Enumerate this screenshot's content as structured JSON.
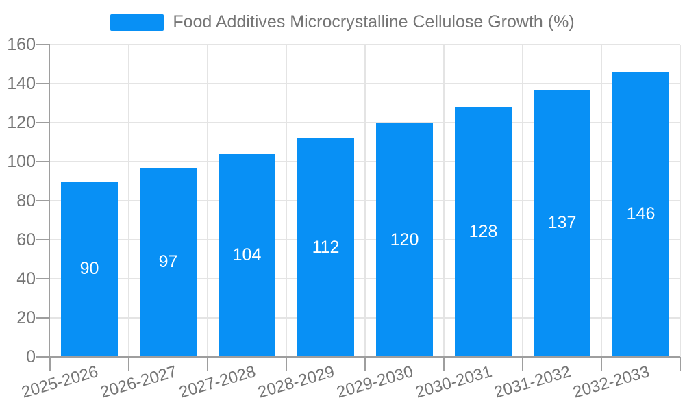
{
  "chart_data": {
    "type": "bar",
    "title": "Food Additives Microcrystalline Cellulose Growth (%)",
    "categories": [
      "2025-2026",
      "2026-2027",
      "2027-2028",
      "2028-2029",
      "2029-2030",
      "2030-2031",
      "2031-2032",
      "2032-2033"
    ],
    "values": [
      90,
      97,
      104,
      112,
      120,
      128,
      137,
      146
    ],
    "xlabel": "",
    "ylabel": "",
    "ylim": [
      0,
      160
    ],
    "yticks": [
      0,
      20,
      40,
      60,
      80,
      100,
      120,
      140,
      160
    ],
    "grid": true,
    "legend_position": "top-center",
    "value_labels": "inside-center",
    "colors": {
      "bar": "#0890f5",
      "value_label": "#ffffff",
      "axis": "#9e9e9e",
      "gridline": "#e4e4e4",
      "text": "#757575",
      "background": "#ffffff"
    }
  }
}
